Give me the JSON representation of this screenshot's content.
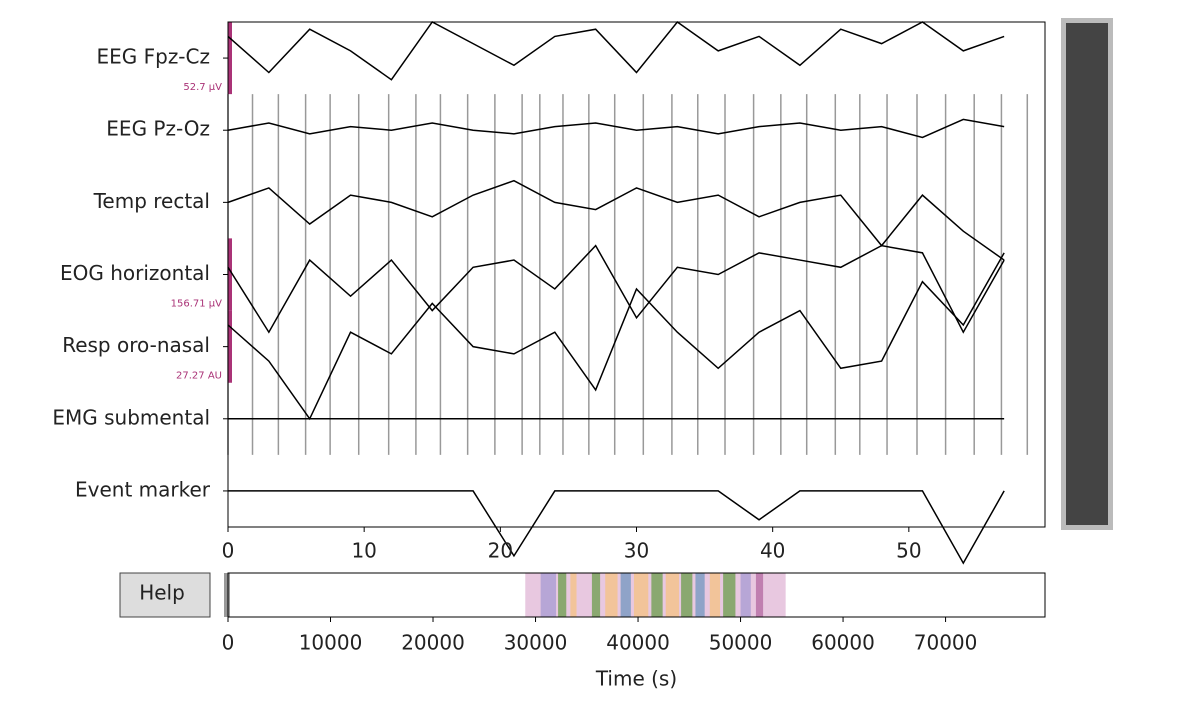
{
  "chart_data": [
    {
      "type": "line",
      "x": [
        0,
        3,
        6,
        9,
        12,
        15,
        18,
        21,
        24,
        27,
        30,
        33,
        36,
        39,
        42,
        45,
        48,
        51,
        54,
        57
      ],
      "xlim": [
        0,
        60
      ],
      "xticks": [
        0,
        10,
        20,
        30,
        40,
        50
      ],
      "series": [
        {
          "name": "EEG Fpz-Cz",
          "scale_label": "52.7 µV",
          "color": "#000000",
          "values": [
            0.3,
            -0.2,
            0.4,
            0.1,
            -0.3,
            0.5,
            0.2,
            -0.1,
            0.3,
            0.4,
            -0.2,
            0.5,
            0.1,
            0.3,
            -0.1,
            0.4,
            0.2,
            0.5,
            0.1,
            0.3
          ]
        },
        {
          "name": "EEG Pz-Oz",
          "color": "#000000",
          "values": [
            0,
            0.1,
            -0.05,
            0.05,
            0,
            0.1,
            0,
            -0.05,
            0.05,
            0.1,
            0,
            0.05,
            -0.05,
            0.05,
            0.1,
            0,
            0.05,
            -0.1,
            0.15,
            0.05
          ]
        },
        {
          "name": "Temp rectal",
          "color": "#000000",
          "values": [
            0,
            0.2,
            -0.3,
            0.1,
            0,
            -0.2,
            0.1,
            0.3,
            0,
            -0.1,
            0.2,
            0,
            0.1,
            -0.2,
            0,
            0.1,
            -0.6,
            0.1,
            -0.4,
            -0.8
          ]
        },
        {
          "name": "EOG horizontal",
          "scale_label": "156.71 µV",
          "color": "#000000",
          "values": [
            0.1,
            -0.8,
            0.2,
            -0.3,
            0.2,
            -0.5,
            0.1,
            0.2,
            -0.2,
            0.4,
            -0.6,
            0.1,
            0,
            0.3,
            0.2,
            0.1,
            0.4,
            0.3,
            -0.8,
            0.2
          ]
        },
        {
          "name": "Resp oro-nasal",
          "scale_label": "27.27 AU",
          "color": "#000000",
          "values": [
            0.3,
            -0.2,
            -1,
            0.2,
            -0.1,
            0.6,
            0,
            -0.1,
            0.2,
            -0.6,
            0.8,
            0.2,
            -0.3,
            0.2,
            0.5,
            -0.3,
            -0.2,
            0.9,
            0.3,
            1.3
          ]
        },
        {
          "name": "EMG submental",
          "color": "#000000",
          "values": [
            0,
            0,
            0,
            0,
            0,
            0,
            0,
            0,
            0,
            0,
            0,
            0,
            0,
            0,
            0,
            0,
            0,
            0,
            0,
            0
          ]
        },
        {
          "name": "Event marker",
          "color": "#000000",
          "values": [
            0,
            0,
            0,
            0,
            0,
            0,
            0,
            -0.9,
            0,
            0,
            0,
            0,
            0,
            -0.4,
            0,
            0,
            0,
            0,
            -1,
            0
          ]
        }
      ],
      "events": {
        "color": "#999999",
        "values": [
          0,
          1.8,
          3.7,
          5.7,
          7.5,
          9.6,
          11.8,
          13.8,
          15.6,
          17.6,
          19.6,
          21.6,
          22.9,
          24.6,
          26.5,
          28.4,
          30.5,
          32.6,
          34.5,
          36.5,
          38.6,
          40.6,
          42.5,
          44.6,
          46.4,
          48.4,
          50.6,
          52.7,
          54.8,
          56.8,
          58.7
        ]
      }
    },
    {
      "type": "span",
      "xlabel": "Time (s)",
      "xlim": [
        0,
        79700
      ],
      "xticks": [
        0,
        10000,
        20000,
        30000,
        40000,
        50000,
        60000,
        70000
      ],
      "spans": [
        {
          "start": 29000,
          "end": 54400,
          "color": "#e8c8e0"
        },
        {
          "start": 30500,
          "end": 32000,
          "color": "#b7a6d6"
        },
        {
          "start": 32200,
          "end": 33000,
          "color": "#8aa870"
        },
        {
          "start": 33400,
          "end": 34000,
          "color": "#f2c49a"
        },
        {
          "start": 35500,
          "end": 36300,
          "color": "#8aa870"
        },
        {
          "start": 36800,
          "end": 38000,
          "color": "#f2c49a"
        },
        {
          "start": 38300,
          "end": 39300,
          "color": "#8fa3c8"
        },
        {
          "start": 39600,
          "end": 41000,
          "color": "#f2c49a"
        },
        {
          "start": 41300,
          "end": 42400,
          "color": "#8aa870"
        },
        {
          "start": 42700,
          "end": 44000,
          "color": "#f2c49a"
        },
        {
          "start": 44200,
          "end": 45300,
          "color": "#8aa870"
        },
        {
          "start": 45600,
          "end": 46500,
          "color": "#8fa3c8"
        },
        {
          "start": 47000,
          "end": 48000,
          "color": "#f2c49a"
        },
        {
          "start": 48300,
          "end": 49500,
          "color": "#8aa870"
        },
        {
          "start": 50000,
          "end": 51000,
          "color": "#b7a6d6"
        },
        {
          "start": 51500,
          "end": 52200,
          "color": "#c07fb0"
        }
      ]
    }
  ],
  "controls": {
    "help": "Help"
  }
}
